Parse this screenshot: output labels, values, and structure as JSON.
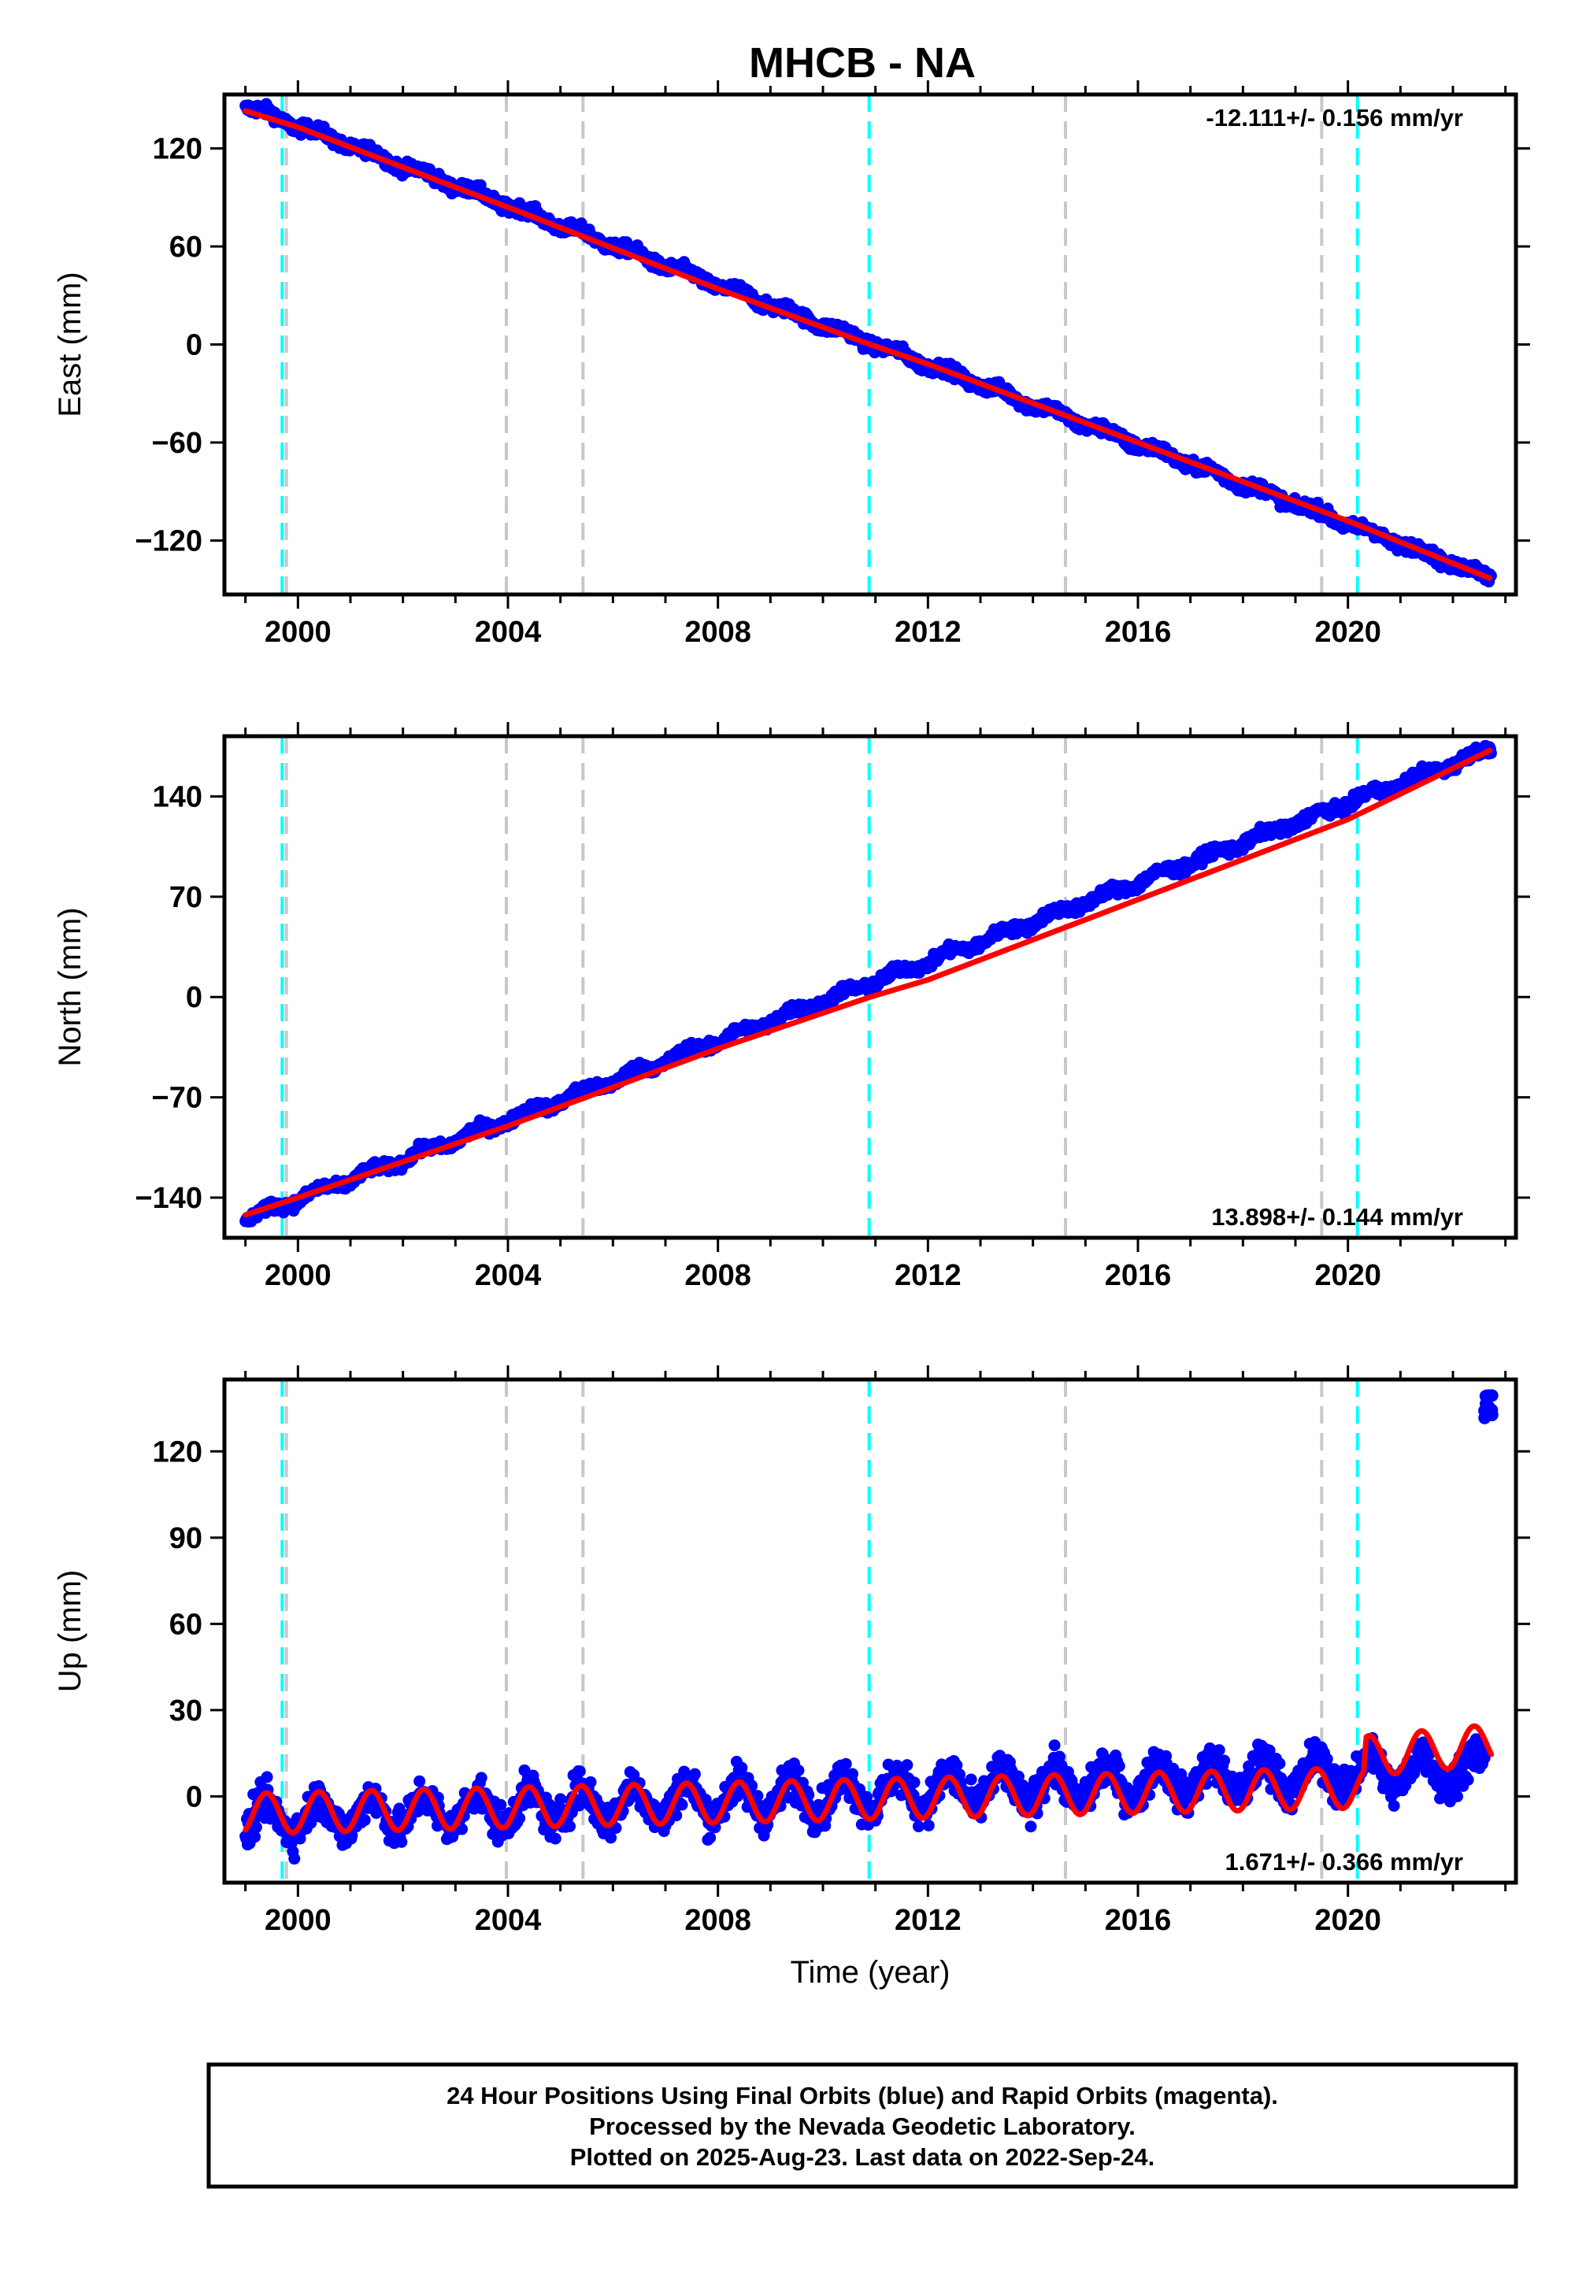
{
  "chart_data": [
    {
      "type": "scatter",
      "panel": "east",
      "title": "MHCB - NA",
      "ylabel": "East (mm)",
      "xlabel": "",
      "xlim": [
        1998.6,
        2023.2
      ],
      "ylim": [
        -153,
        153
      ],
      "yticks": [
        -120,
        -60,
        0,
        60,
        120
      ],
      "xticks": [
        2000,
        2004,
        2008,
        2012,
        2016,
        2020
      ],
      "rate_text": "-12.111+/- 0.156 mm/yr",
      "rate_position": "top-right",
      "grid": false,
      "series": [
        {
          "name": "",
          "color": "#0000ff",
          "kind": "daily positions",
          "start": 1999.0,
          "end": 2022.73,
          "start_value": 146,
          "end_value": -143,
          "seasonal_amplitude": 2,
          "scatter_mm": 2.5
        },
        {
          "name": "",
          "color": "#ff0000",
          "kind": "model fit",
          "points": [
            [
              1999.0,
              143
            ],
            [
              2000.0,
              133
            ],
            [
              2004.0,
              84
            ],
            [
              2008.0,
              34
            ],
            [
              2010.9,
              0
            ],
            [
              2012.0,
              -12
            ],
            [
              2016.0,
              -60
            ],
            [
              2020.0,
              -108
            ],
            [
              2022.7,
              -143
            ]
          ]
        }
      ],
      "vlines": [
        {
          "x": 1999.7,
          "color": "#00ffff"
        },
        {
          "x": 1999.78,
          "color": "#c8c8c8"
        },
        {
          "x": 2003.97,
          "color": "#c8c8c8"
        },
        {
          "x": 2005.43,
          "color": "#c8c8c8"
        },
        {
          "x": 2010.88,
          "color": "#00ffff"
        },
        {
          "x": 2014.62,
          "color": "#c8c8c8"
        },
        {
          "x": 2019.5,
          "color": "#c8c8c8"
        },
        {
          "x": 2020.18,
          "color": "#00ffff"
        }
      ]
    },
    {
      "type": "scatter",
      "panel": "north",
      "title": "",
      "ylabel": "North (mm)",
      "xlabel": "",
      "xlim": [
        1998.6,
        2023.2
      ],
      "ylim": [
        -168,
        182
      ],
      "yticks": [
        -140,
        -70,
        0,
        70,
        140
      ],
      "xticks": [
        2000,
        2004,
        2008,
        2012,
        2016,
        2020
      ],
      "rate_text": "13.898+/- 0.144 mm/yr",
      "rate_position": "bottom-right",
      "grid": false,
      "series": [
        {
          "name": "",
          "color": "#0000ff",
          "kind": "daily positions",
          "start": 1999.0,
          "end": 2022.73,
          "start_value": -155,
          "end_value": 173,
          "seasonal_amplitude": 2.5,
          "scatter_mm": 2.5
        },
        {
          "name": "",
          "color": "#ff0000",
          "kind": "model fit",
          "points": [
            [
              1999.0,
              -152
            ],
            [
              2000.0,
              -140
            ],
            [
              2004.0,
              -90
            ],
            [
              2008.0,
              -36
            ],
            [
              2010.9,
              0
            ],
            [
              2012.0,
              12
            ],
            [
              2016.0,
              68
            ],
            [
              2020.0,
              124
            ],
            [
              2022.7,
              172
            ]
          ]
        }
      ],
      "vlines": [
        {
          "x": 1999.7,
          "color": "#00ffff"
        },
        {
          "x": 1999.78,
          "color": "#c8c8c8"
        },
        {
          "x": 2003.97,
          "color": "#c8c8c8"
        },
        {
          "x": 2005.43,
          "color": "#c8c8c8"
        },
        {
          "x": 2010.88,
          "color": "#00ffff"
        },
        {
          "x": 2014.62,
          "color": "#c8c8c8"
        },
        {
          "x": 2019.5,
          "color": "#c8c8c8"
        },
        {
          "x": 2020.18,
          "color": "#00ffff"
        }
      ]
    },
    {
      "type": "scatter",
      "panel": "up",
      "title": "",
      "ylabel": "Up (mm)",
      "xlabel": "Time (year)",
      "xlim": [
        1998.6,
        2023.2
      ],
      "ylim": [
        -30,
        145
      ],
      "yticks": [
        0,
        30,
        60,
        90,
        120
      ],
      "xticks": [
        2000,
        2004,
        2008,
        2012,
        2016,
        2020
      ],
      "rate_text": "1.671+/- 0.366 mm/yr",
      "rate_position": "bottom-right",
      "grid": false,
      "series": [
        {
          "name": "",
          "color": "#0000ff",
          "kind": "daily positions",
          "start": 1999.0,
          "end": 2022.63,
          "start_value": -8,
          "end_value": 10,
          "seasonal_amplitude": 6,
          "scatter_mm": 4.5,
          "outliers": {
            "start": 2022.6,
            "end": 2022.75,
            "min": 131,
            "max": 140
          }
        },
        {
          "name": "",
          "color": "#ff0000",
          "kind": "model fit",
          "trend": [
            [
              1999.0,
              -6
            ],
            [
              2020.3,
              3
            ],
            [
              2020.35,
              14
            ],
            [
              2022.73,
              18
            ]
          ],
          "seasonal_amplitude": 7
        }
      ],
      "vlines": [
        {
          "x": 1999.7,
          "color": "#00ffff"
        },
        {
          "x": 1999.78,
          "color": "#c8c8c8"
        },
        {
          "x": 2003.97,
          "color": "#c8c8c8"
        },
        {
          "x": 2005.43,
          "color": "#c8c8c8"
        },
        {
          "x": 2010.88,
          "color": "#00ffff"
        },
        {
          "x": 2014.62,
          "color": "#c8c8c8"
        },
        {
          "x": 2019.5,
          "color": "#c8c8c8"
        },
        {
          "x": 2020.18,
          "color": "#00ffff"
        }
      ]
    }
  ],
  "footer": {
    "line1": "24 Hour Positions Using Final Orbits (blue) and Rapid Orbits (magenta).",
    "line2": "Processed by the Nevada Geodetic Laboratory.",
    "line3": "Plotted on 2025-Aug-23. Last data on 2022-Sep-24."
  },
  "colors": {
    "daily_positions": "#0000ff",
    "model_fit": "#ff0000",
    "vline_cyan": "#00ffff",
    "vline_gray": "#c8c8c8"
  }
}
